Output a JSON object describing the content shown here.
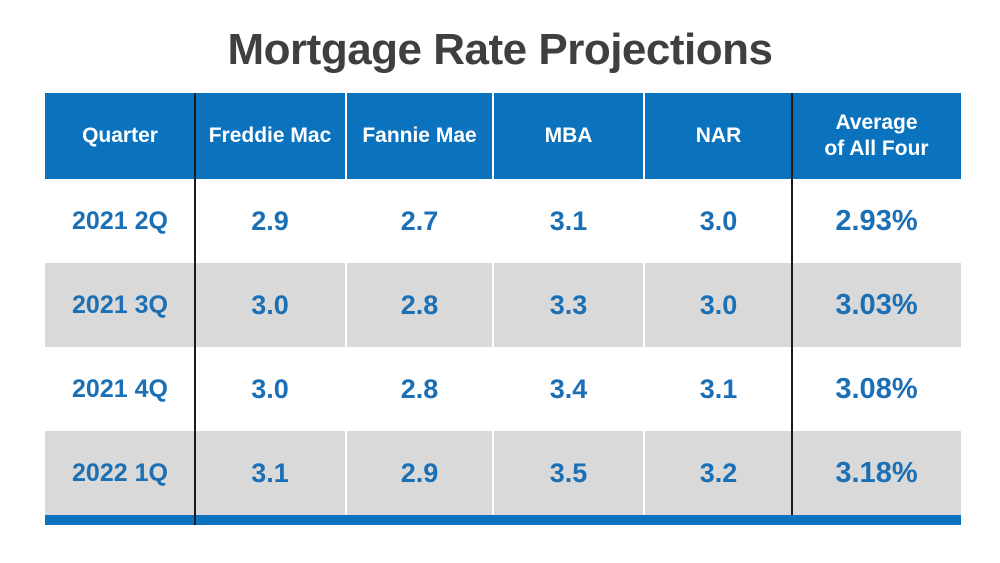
{
  "page": {
    "title": "Mortgage Rate Projections"
  },
  "colors": {
    "header_blue": "#0B73BE",
    "accent_bar_blue": "#0B73BE",
    "alt_row_gray": "#D9D9D9",
    "value_blue": "#1B6FB5",
    "title_gray": "#3F3F3F",
    "divider_black": "#1B1B1B"
  },
  "table": {
    "headers": [
      "Quarter",
      "Freddie Mac",
      "Fannie Mae",
      "MBA",
      "NAR"
    ],
    "avg_header": {
      "line1": "Average",
      "line2": "of All Four"
    },
    "rows": [
      {
        "quarter": "2021 2Q",
        "freddie_mac": "2.9",
        "fannie_mae": "2.7",
        "mba": "3.1",
        "nar": "3.0",
        "average": "2.93%"
      },
      {
        "quarter": "2021 3Q",
        "freddie_mac": "3.0",
        "fannie_mae": "2.8",
        "mba": "3.3",
        "nar": "3.0",
        "average": "3.03%"
      },
      {
        "quarter": "2021 4Q",
        "freddie_mac": "3.0",
        "fannie_mae": "2.8",
        "mba": "3.4",
        "nar": "3.1",
        "average": "3.08%"
      },
      {
        "quarter": "2022 1Q",
        "freddie_mac": "3.1",
        "fannie_mae": "2.9",
        "mba": "3.5",
        "nar": "3.2",
        "average": "3.18%"
      }
    ]
  },
  "chart_data": {
    "type": "table",
    "title": "Mortgage Rate Projections",
    "columns": [
      "Quarter",
      "Freddie Mac",
      "Fannie Mae",
      "MBA",
      "NAR",
      "Average of All Four"
    ],
    "rows": [
      [
        "2021 2Q",
        2.9,
        2.7,
        3.1,
        3.0,
        "2.93%"
      ],
      [
        "2021 3Q",
        3.0,
        2.8,
        3.3,
        3.0,
        "3.03%"
      ],
      [
        "2021 4Q",
        3.0,
        2.8,
        3.4,
        3.1,
        "3.08%"
      ],
      [
        "2022 1Q",
        3.1,
        2.9,
        3.5,
        3.2,
        "3.18%"
      ]
    ]
  }
}
